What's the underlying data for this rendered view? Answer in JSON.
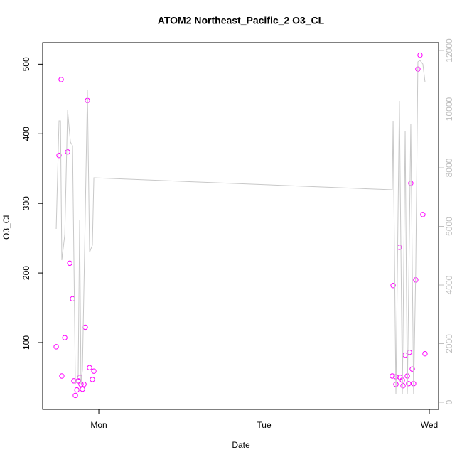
{
  "chart_data": {
    "type": "scatter",
    "title": "ATOM2 Northeast_Pacific_2 O3_CL",
    "x_label": "Date",
    "y_label": "O3_CL",
    "xlim": [
      0.66,
      3.056
    ],
    "xticks": [
      {
        "value": 1,
        "label": "Mon"
      },
      {
        "value": 2,
        "label": "Tue"
      },
      {
        "value": 3,
        "label": "Wed"
      }
    ],
    "ylim": [
      4,
      531
    ],
    "yticks": [
      100,
      200,
      300,
      400,
      500
    ],
    "y2lim": [
      -242,
      12267
    ],
    "y2ticks": [
      0,
      2000,
      4000,
      6000,
      8000,
      10000,
      12000
    ],
    "y2_color": "#bebebe",
    "series": [
      {
        "type": "scatter",
        "color": "#ff00ff",
        "x": [
          0.742,
          0.759,
          0.772,
          0.776,
          0.794,
          0.811,
          0.824,
          0.841,
          0.849,
          0.858,
          0.867,
          0.875,
          0.884,
          0.892,
          0.901,
          0.91,
          0.918,
          0.931,
          0.944,
          0.961,
          0.97,
          2.776,
          2.781,
          2.798,
          2.798,
          2.819,
          2.824,
          2.837,
          2.841,
          2.854,
          2.867,
          2.875,
          2.88,
          2.888,
          2.897,
          2.905,
          2.918,
          2.931,
          2.944,
          2.961,
          2.974
        ],
        "values": [
          94,
          369,
          478,
          52,
          107,
          374,
          214,
          163,
          45,
          24,
          32,
          45,
          50,
          40,
          33,
          40,
          122,
          448,
          64,
          47,
          59,
          52,
          182,
          40,
          51,
          237,
          50,
          46,
          38,
          82,
          52,
          41,
          86,
          329,
          62,
          41,
          190,
          493,
          513,
          284,
          84
        ]
      },
      {
        "type": "line",
        "axis": "y2",
        "color": "#c8c8c8",
        "x": [
          0.742,
          0.759,
          0.768,
          0.776,
          0.794,
          0.811,
          0.828,
          0.841,
          0.858,
          0.875,
          0.884,
          0.892,
          0.901,
          0.918,
          0.931,
          0.944,
          0.961,
          0.97,
          2.776,
          2.781,
          2.798,
          2.819,
          2.837,
          2.854,
          2.867,
          2.888,
          2.905,
          2.918,
          2.931,
          2.944,
          2.961,
          2.974
        ],
        "values": [
          5915,
          9600,
          9600,
          4848,
          5721,
          9964,
          8873,
          8752,
          630,
          873,
          6206,
          630,
          1115,
          6448,
          10642,
          5115,
          5358,
          7661,
          7248,
          9600,
          267,
          10279,
          267,
          9236,
          267,
          9479,
          267,
          4509,
          11612,
          11661,
          11539,
          10933
        ]
      }
    ]
  }
}
